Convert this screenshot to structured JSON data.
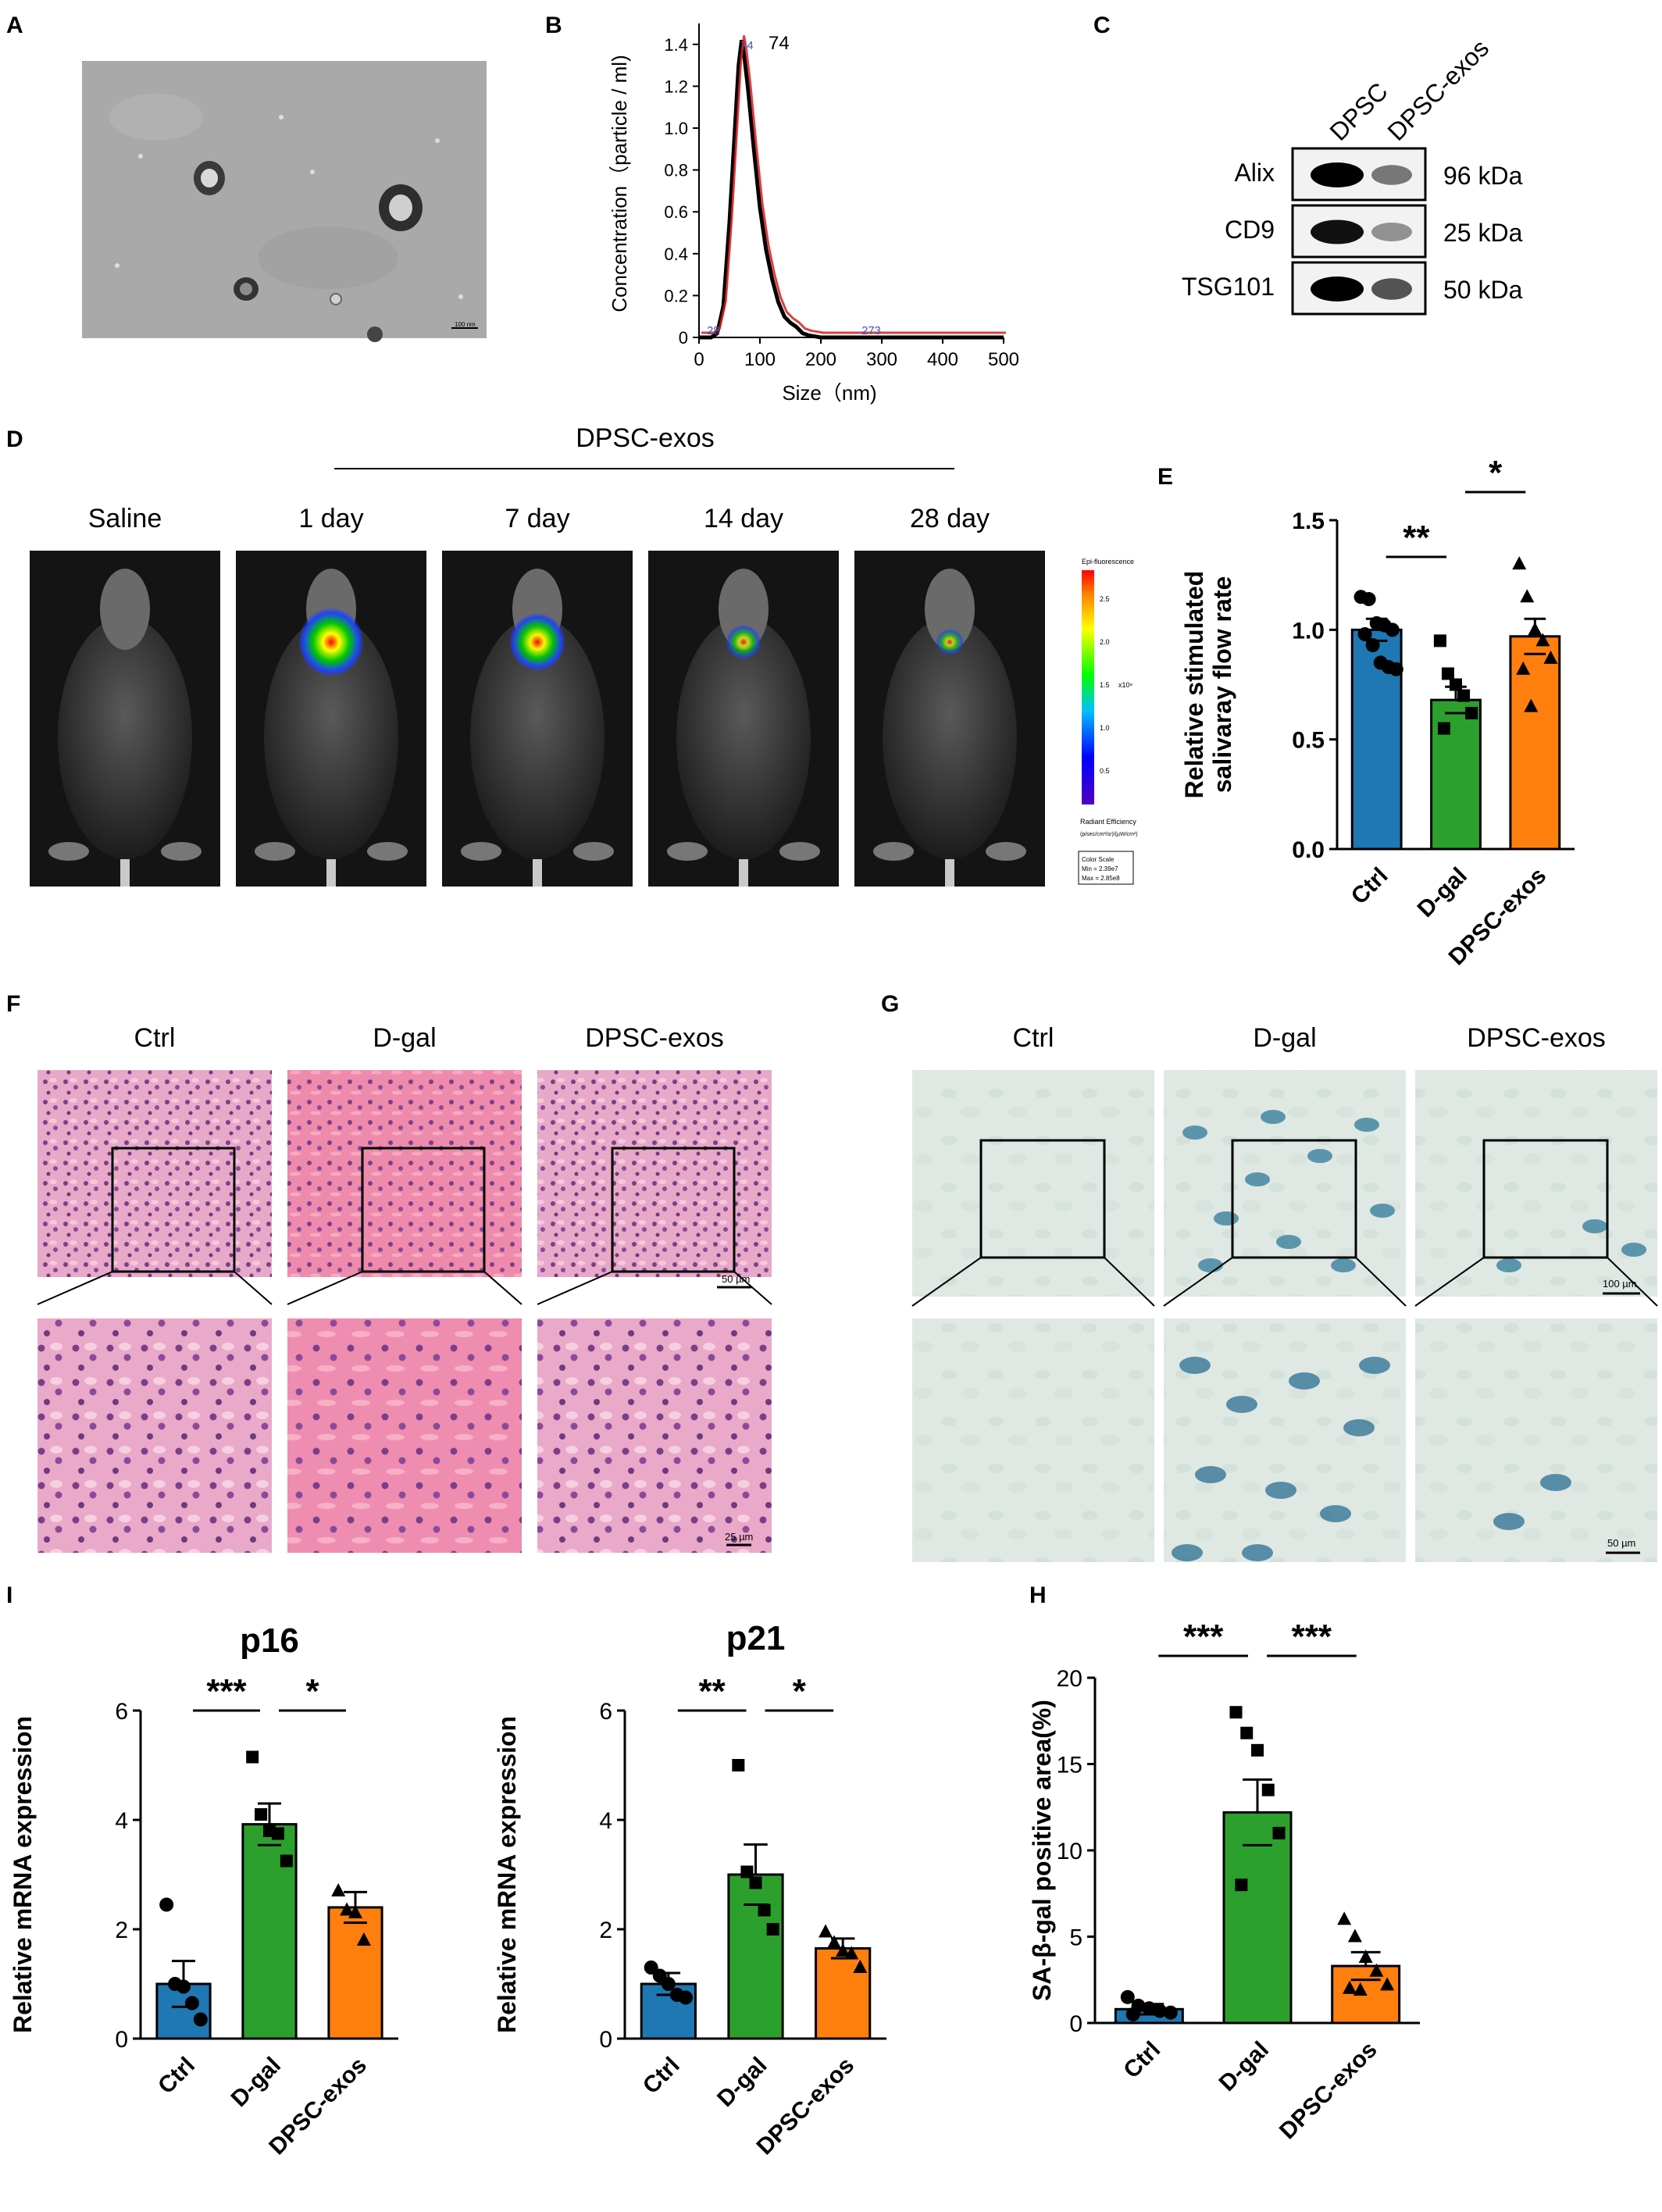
{
  "panel_labels": [
    "A",
    "B",
    "C",
    "D",
    "E",
    "F",
    "G",
    "H",
    "I"
  ],
  "panel_a": {
    "scale_bar_label": "100 nm"
  },
  "panel_b": {
    "ylabel": "Concentration（particle / ml)",
    "xlabel": "Size（nm)",
    "peak_label": "74",
    "peak_marker_label": "74",
    "left_marker_label": "28",
    "right_marker_label": "273"
  },
  "panel_c": {
    "lanes": [
      "DPSC",
      "DPSC-exos"
    ],
    "rows": [
      {
        "protein": "Alix",
        "size": "96 kDa",
        "bands": [
          1.0,
          0.35
        ]
      },
      {
        "protein": "CD9",
        "size": "25 kDa",
        "bands": [
          0.9,
          0.2
        ]
      },
      {
        "protein": "TSG101",
        "size": "50 kDa",
        "bands": [
          1.0,
          0.55
        ]
      }
    ]
  },
  "panel_d": {
    "group_label": "DPSC-exos",
    "columns": [
      "Saline",
      "1 day",
      "7 day",
      "14 day",
      "28 day"
    ],
    "signal_levels": [
      0,
      1.0,
      0.8,
      0.35,
      0.2
    ],
    "colorbar": {
      "title": "Epi-fluorescence",
      "ticks": [
        "2.5",
        "2.0",
        "1.5",
        "1.0",
        "0.5"
      ],
      "multiplier": "x10⁸",
      "unit_label": "Radiant Efficiency",
      "unit_sub": "(p/sec/cm²/sr)/(µW/cm²)",
      "color_scale_label": "Color Scale",
      "min_label": "Min = 2.39e7",
      "max_label": "Max = 2.85e8"
    },
    "colors": {
      "high": "#ff0000",
      "mid": "#ffff00",
      "low": "#00c000",
      "lowest": "#2020ff"
    }
  },
  "panel_f": {
    "columns": [
      "Ctrl",
      "D-gal",
      "DPSC-exos"
    ],
    "scale_top": "50 µm",
    "scale_bottom": "25 µm"
  },
  "panel_g": {
    "columns": [
      "Ctrl",
      "D-gal",
      "DPSC-exos"
    ],
    "scale_top": "100 µm",
    "scale_bottom": "50 µm"
  },
  "colors": {
    "ctrl": "#1f77b4",
    "dgal": "#2ca02c",
    "exos": "#ff7f0e"
  },
  "chart_data": [
    {
      "id": "B",
      "type": "line",
      "xlabel": "Size（nm)",
      "ylabel": "Concentration（particle / ml)",
      "xlim": [
        0,
        500
      ],
      "ylim": [
        0,
        1.5
      ],
      "xticks": [
        0,
        100,
        200,
        300,
        400,
        500
      ],
      "yticks": [
        0,
        0.2,
        0.4,
        0.6,
        0.8,
        1.0,
        1.2,
        1.4
      ],
      "series": [
        {
          "x": [
            0,
            20,
            30,
            40,
            50,
            60,
            65,
            70,
            74,
            80,
            90,
            100,
            110,
            120,
            130,
            140,
            150,
            160,
            170,
            180,
            200,
            250,
            300,
            400,
            500
          ],
          "y": [
            0,
            0,
            0.02,
            0.15,
            0.55,
            1.05,
            1.3,
            1.42,
            1.35,
            1.2,
            0.9,
            0.62,
            0.42,
            0.28,
            0.17,
            0.1,
            0.07,
            0.05,
            0.02,
            0.01,
            0,
            0,
            0,
            0,
            0
          ]
        }
      ]
    },
    {
      "id": "E",
      "type": "bar",
      "ylabel": "Relative stimulated salivaray flow rate",
      "categories": [
        "Ctrl",
        "D-gal",
        "DPSC-exos"
      ],
      "values": [
        1.0,
        0.68,
        0.97
      ],
      "errors": [
        0.05,
        0.06,
        0.08
      ],
      "points": [
        [
          1.15,
          1.14,
          1.03,
          1.02,
          1.0,
          0.98,
          0.93,
          0.85,
          0.83,
          0.82
        ],
        [
          0.95,
          0.8,
          0.75,
          0.7,
          0.62,
          0.55
        ],
        [
          1.3,
          1.15,
          1.0,
          0.95,
          0.87,
          0.82,
          0.65
        ]
      ],
      "ylim": [
        0,
        1.5
      ],
      "yticks": [
        "0.0",
        "0.5",
        "1.0",
        "1.5"
      ],
      "significance": [
        {
          "from": 0,
          "to": 1,
          "label": "**"
        },
        {
          "from": 1,
          "to": 2,
          "label": "*"
        }
      ]
    },
    {
      "id": "I-p16",
      "type": "bar",
      "title": "p16",
      "ylabel": "Relative mRNA expression",
      "categories": [
        "Ctrl",
        "D-gal",
        "DPSC-exos"
      ],
      "values": [
        1.0,
        3.92,
        2.4
      ],
      "errors": [
        0.42,
        0.38,
        0.28
      ],
      "points": [
        [
          2.45,
          1.0,
          0.95,
          0.65,
          0.35
        ],
        [
          5.15,
          4.1,
          3.8,
          3.75,
          3.25
        ],
        [
          2.7,
          2.35,
          2.3,
          1.8
        ]
      ],
      "ylim": [
        0,
        6
      ],
      "yticks": [
        "0",
        "2",
        "4",
        "6"
      ],
      "significance": [
        {
          "from": 0,
          "to": 1,
          "label": "***"
        },
        {
          "from": 1,
          "to": 2,
          "label": "*"
        }
      ]
    },
    {
      "id": "I-p21",
      "type": "bar",
      "title": "p21",
      "ylabel": "Relative mRNA expression",
      "categories": [
        "Ctrl",
        "D-gal",
        "DPSC-exos"
      ],
      "values": [
        1.0,
        3.0,
        1.65
      ],
      "errors": [
        0.2,
        0.55,
        0.18
      ],
      "points": [
        [
          1.3,
          1.15,
          1.0,
          0.8,
          0.75
        ],
        [
          5.0,
          3.05,
          2.85,
          2.35,
          2.0
        ],
        [
          1.95,
          1.75,
          1.6,
          1.55,
          1.3
        ]
      ],
      "ylim": [
        0,
        6
      ],
      "yticks": [
        "0",
        "2",
        "4",
        "6"
      ],
      "significance": [
        {
          "from": 0,
          "to": 1,
          "label": "**"
        },
        {
          "from": 1,
          "to": 2,
          "label": "*"
        }
      ]
    },
    {
      "id": "H",
      "type": "bar",
      "ylabel": "SA-β-gal positive area(%)",
      "categories": [
        "Ctrl",
        "D-gal",
        "DPSC-exos"
      ],
      "values": [
        0.8,
        12.2,
        3.3
      ],
      "errors": [
        0.3,
        1.9,
        0.8
      ],
      "points": [
        [
          1.5,
          1.0,
          0.85,
          0.7,
          0.6,
          0.5
        ],
        [
          18.0,
          16.8,
          15.8,
          13.5,
          11.0,
          8.0
        ],
        [
          6.0,
          5.0,
          3.8,
          3.0,
          2.2,
          2.0,
          1.9
        ]
      ],
      "ylim": [
        0,
        20
      ],
      "yticks": [
        "0",
        "5",
        "10",
        "15",
        "20"
      ],
      "significance": [
        {
          "from": 0,
          "to": 1,
          "label": "***"
        },
        {
          "from": 1,
          "to": 2,
          "label": "***"
        }
      ]
    }
  ]
}
